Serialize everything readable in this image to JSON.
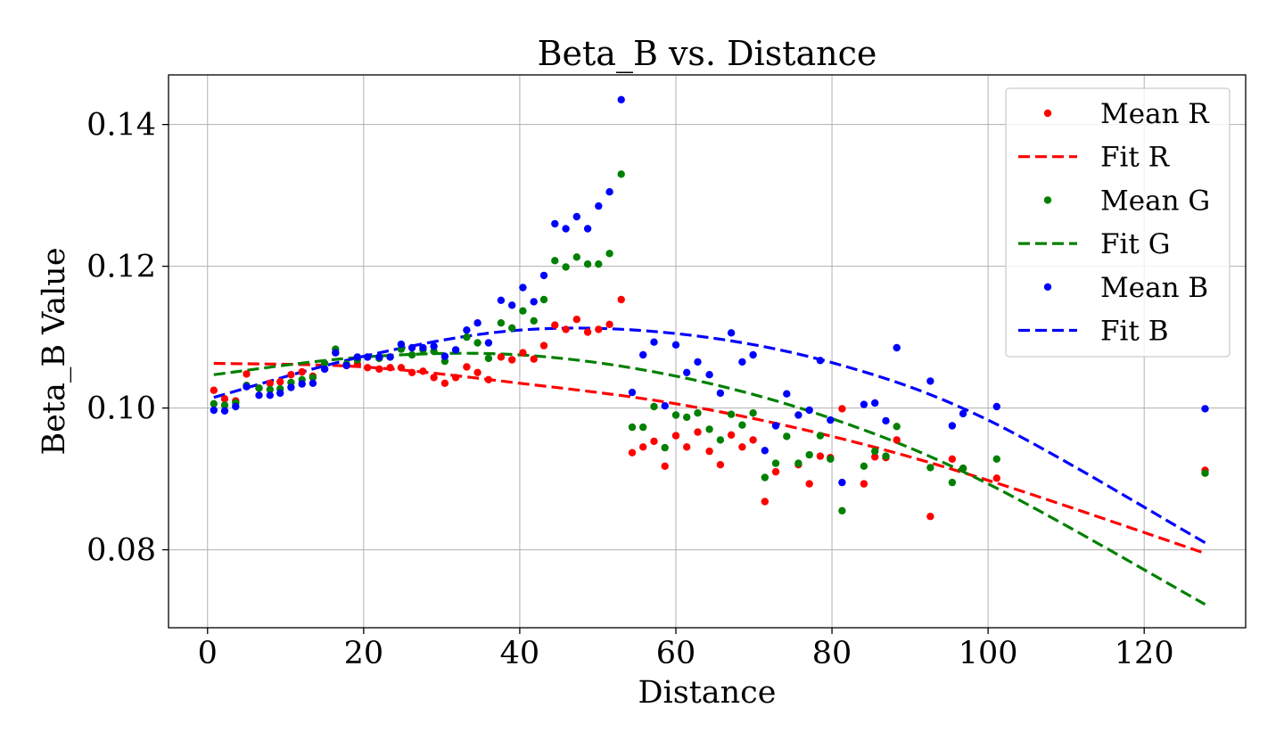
{
  "chart_data": {
    "type": "scatter",
    "title": "Beta_B vs. Distance",
    "xlabel": "Distance",
    "ylabel": "Beta_B Value",
    "xlim": [
      -5,
      133
    ],
    "ylim": [
      0.069,
      0.147
    ],
    "xticks": [
      0,
      20,
      40,
      60,
      80,
      100,
      120
    ],
    "yticks": [
      0.08,
      0.1,
      0.12,
      0.14
    ],
    "xtick_labels": [
      "0",
      "20",
      "40",
      "60",
      "80",
      "100",
      "120"
    ],
    "ytick_labels": [
      "0.08",
      "0.10",
      "0.12",
      "0.14"
    ],
    "grid": true,
    "legend_position": "top-right",
    "legend": [
      "Mean R",
      "Fit R",
      "Mean G",
      "Fit G",
      "Mean B",
      "Fit B"
    ],
    "colors": {
      "R": "#ff0000",
      "G": "#008000",
      "B": "#0000ff"
    },
    "series": [
      {
        "name": "Mean R",
        "kind": "scatter",
        "color": "#ff0000",
        "x": [
          0.8,
          2.2,
          3.6,
          5,
          6.6,
          8,
          9.3,
          10.7,
          12.1,
          13.5,
          15,
          16.4,
          17.8,
          19.2,
          20.5,
          22,
          23.4,
          24.8,
          26.2,
          27.6,
          29,
          30.4,
          31.8,
          33.2,
          34.6,
          36,
          37.6,
          39,
          40.4,
          41.8,
          43.1,
          44.5,
          45.9,
          47.3,
          48.7,
          50.1,
          51.5,
          53,
          54.4,
          55.8,
          57.2,
          58.6,
          60,
          61.4,
          62.8,
          64.3,
          65.7,
          67.1,
          68.5,
          69.9,
          71.4,
          72.8,
          75.7,
          77.1,
          78.5,
          79.8,
          81.3,
          84.1,
          85.5,
          86.9,
          88.3,
          92.6,
          95.4,
          96.8,
          101.1,
          127.8
        ],
        "y": [
          0.1025,
          0.1013,
          0.101,
          0.1048,
          0.1028,
          0.1035,
          0.1037,
          0.1047,
          0.1051,
          0.1045,
          0.1055,
          0.1078,
          0.106,
          0.1062,
          0.1057,
          0.1055,
          0.1057,
          0.1057,
          0.105,
          0.1052,
          0.1043,
          0.1035,
          0.1043,
          0.1058,
          0.105,
          0.104,
          0.1072,
          0.1068,
          0.1078,
          0.1069,
          0.1088,
          0.1117,
          0.1111,
          0.1125,
          0.1107,
          0.1111,
          0.1118,
          0.1153,
          0.0937,
          0.0945,
          0.0953,
          0.0918,
          0.0961,
          0.0945,
          0.0966,
          0.0939,
          0.092,
          0.0962,
          0.0945,
          0.0955,
          0.0868,
          0.091,
          0.092,
          0.0893,
          0.0932,
          0.093,
          0.0999,
          0.0893,
          0.0931,
          0.093,
          0.0955,
          0.0847,
          0.0928,
          0.0915,
          0.0901,
          0.0912
        ]
      },
      {
        "name": "Fit R",
        "kind": "fit",
        "color": "#ff0000",
        "x": [
          0.8,
          20,
          40,
          60,
          80,
          100,
          127.8
        ],
        "y": [
          0.1063,
          0.1058,
          0.1035,
          0.1006,
          0.096,
          0.0898,
          0.0795
        ]
      },
      {
        "name": "Mean G",
        "kind": "scatter",
        "color": "#008000",
        "x": [
          0.8,
          2.2,
          3.6,
          5,
          6.6,
          8,
          9.3,
          10.7,
          12.1,
          13.5,
          15,
          16.4,
          17.8,
          19.2,
          20.5,
          22,
          23.4,
          24.8,
          26.2,
          27.6,
          29,
          30.4,
          31.8,
          33.2,
          34.6,
          36,
          37.6,
          39,
          40.4,
          41.8,
          43.1,
          44.5,
          45.9,
          47.3,
          48.7,
          50.1,
          51.5,
          53,
          54.4,
          55.8,
          57.2,
          58.6,
          60,
          61.4,
          62.8,
          64.3,
          65.7,
          67.1,
          68.5,
          69.9,
          71.4,
          72.8,
          74.2,
          75.7,
          77.1,
          78.5,
          79.8,
          81.3,
          84.1,
          85.5,
          86.9,
          88.3,
          92.6,
          95.4,
          96.8,
          101.1,
          127.8
        ],
        "y": [
          0.1006,
          0.1004,
          0.1007,
          0.1032,
          0.1028,
          0.1026,
          0.1027,
          0.1036,
          0.104,
          0.1043,
          0.1063,
          0.1083,
          0.1062,
          0.1068,
          0.1072,
          0.107,
          0.1072,
          0.1083,
          0.1075,
          0.1082,
          0.108,
          0.1066,
          0.1082,
          0.11,
          0.1092,
          0.107,
          0.112,
          0.1113,
          0.1137,
          0.1123,
          0.1153,
          0.1208,
          0.1199,
          0.1213,
          0.1203,
          0.1203,
          0.1218,
          0.133,
          0.0973,
          0.0973,
          0.1002,
          0.0944,
          0.099,
          0.0987,
          0.0993,
          0.097,
          0.0955,
          0.0991,
          0.0976,
          0.0993,
          0.0902,
          0.0922,
          0.096,
          0.0922,
          0.0934,
          0.0961,
          0.0928,
          0.0855,
          0.0918,
          0.0939,
          0.0932,
          0.0974,
          0.0916,
          0.0895,
          0.0915,
          0.0928,
          0.0908
        ]
      },
      {
        "name": "Fit G",
        "kind": "fit",
        "color": "#008000",
        "x": [
          0.8,
          20,
          40,
          60,
          80,
          100,
          127.8
        ],
        "y": [
          0.1047,
          0.1072,
          0.1075,
          0.1045,
          0.0985,
          0.0893,
          0.0723
        ]
      },
      {
        "name": "Mean B",
        "kind": "scatter",
        "color": "#0000ff",
        "x": [
          0.8,
          2.2,
          3.6,
          5,
          6.6,
          8,
          9.3,
          10.7,
          12.1,
          13.5,
          15,
          16.4,
          17.8,
          19.2,
          20.5,
          22,
          23.4,
          24.8,
          26.2,
          27.6,
          29,
          30.4,
          31.8,
          33.2,
          34.6,
          36,
          37.6,
          39,
          40.4,
          41.8,
          43.1,
          44.5,
          45.9,
          47.3,
          48.7,
          50.1,
          51.5,
          53,
          54.4,
          55.8,
          57.2,
          58.6,
          60,
          61.4,
          62.8,
          64.3,
          65.7,
          67.1,
          68.5,
          69.9,
          71.4,
          72.8,
          74.2,
          75.7,
          77.1,
          78.5,
          79.8,
          81.3,
          84.1,
          85.5,
          86.9,
          88.3,
          92.6,
          95.4,
          96.8,
          101.1,
          127.8
        ],
        "y": [
          0.0997,
          0.0996,
          0.1002,
          0.103,
          0.1018,
          0.1018,
          0.1021,
          0.1029,
          0.1034,
          0.1035,
          0.1055,
          0.1078,
          0.106,
          0.1072,
          0.1072,
          0.1072,
          0.1072,
          0.109,
          0.1085,
          0.1085,
          0.1087,
          0.1073,
          0.1082,
          0.111,
          0.112,
          0.1092,
          0.1152,
          0.1145,
          0.117,
          0.115,
          0.1187,
          0.126,
          0.1253,
          0.127,
          0.1253,
          0.1285,
          0.1305,
          0.1435,
          0.1022,
          0.1075,
          0.1093,
          0.1003,
          0.1089,
          0.105,
          0.1065,
          0.1047,
          0.1021,
          0.1106,
          0.1065,
          0.1075,
          0.094,
          0.0975,
          0.102,
          0.099,
          0.0997,
          0.1067,
          0.0983,
          0.0895,
          0.1005,
          0.1007,
          0.0982,
          0.1085,
          0.1038,
          0.0975,
          0.0992,
          0.1002,
          0.0999
        ]
      },
      {
        "name": "Fit B",
        "kind": "fit",
        "color": "#0000ff",
        "x": [
          0.8,
          20,
          40,
          60,
          80,
          100,
          127.8
        ],
        "y": [
          0.1015,
          0.1073,
          0.111,
          0.1105,
          0.1064,
          0.0983,
          0.081
        ]
      }
    ]
  }
}
